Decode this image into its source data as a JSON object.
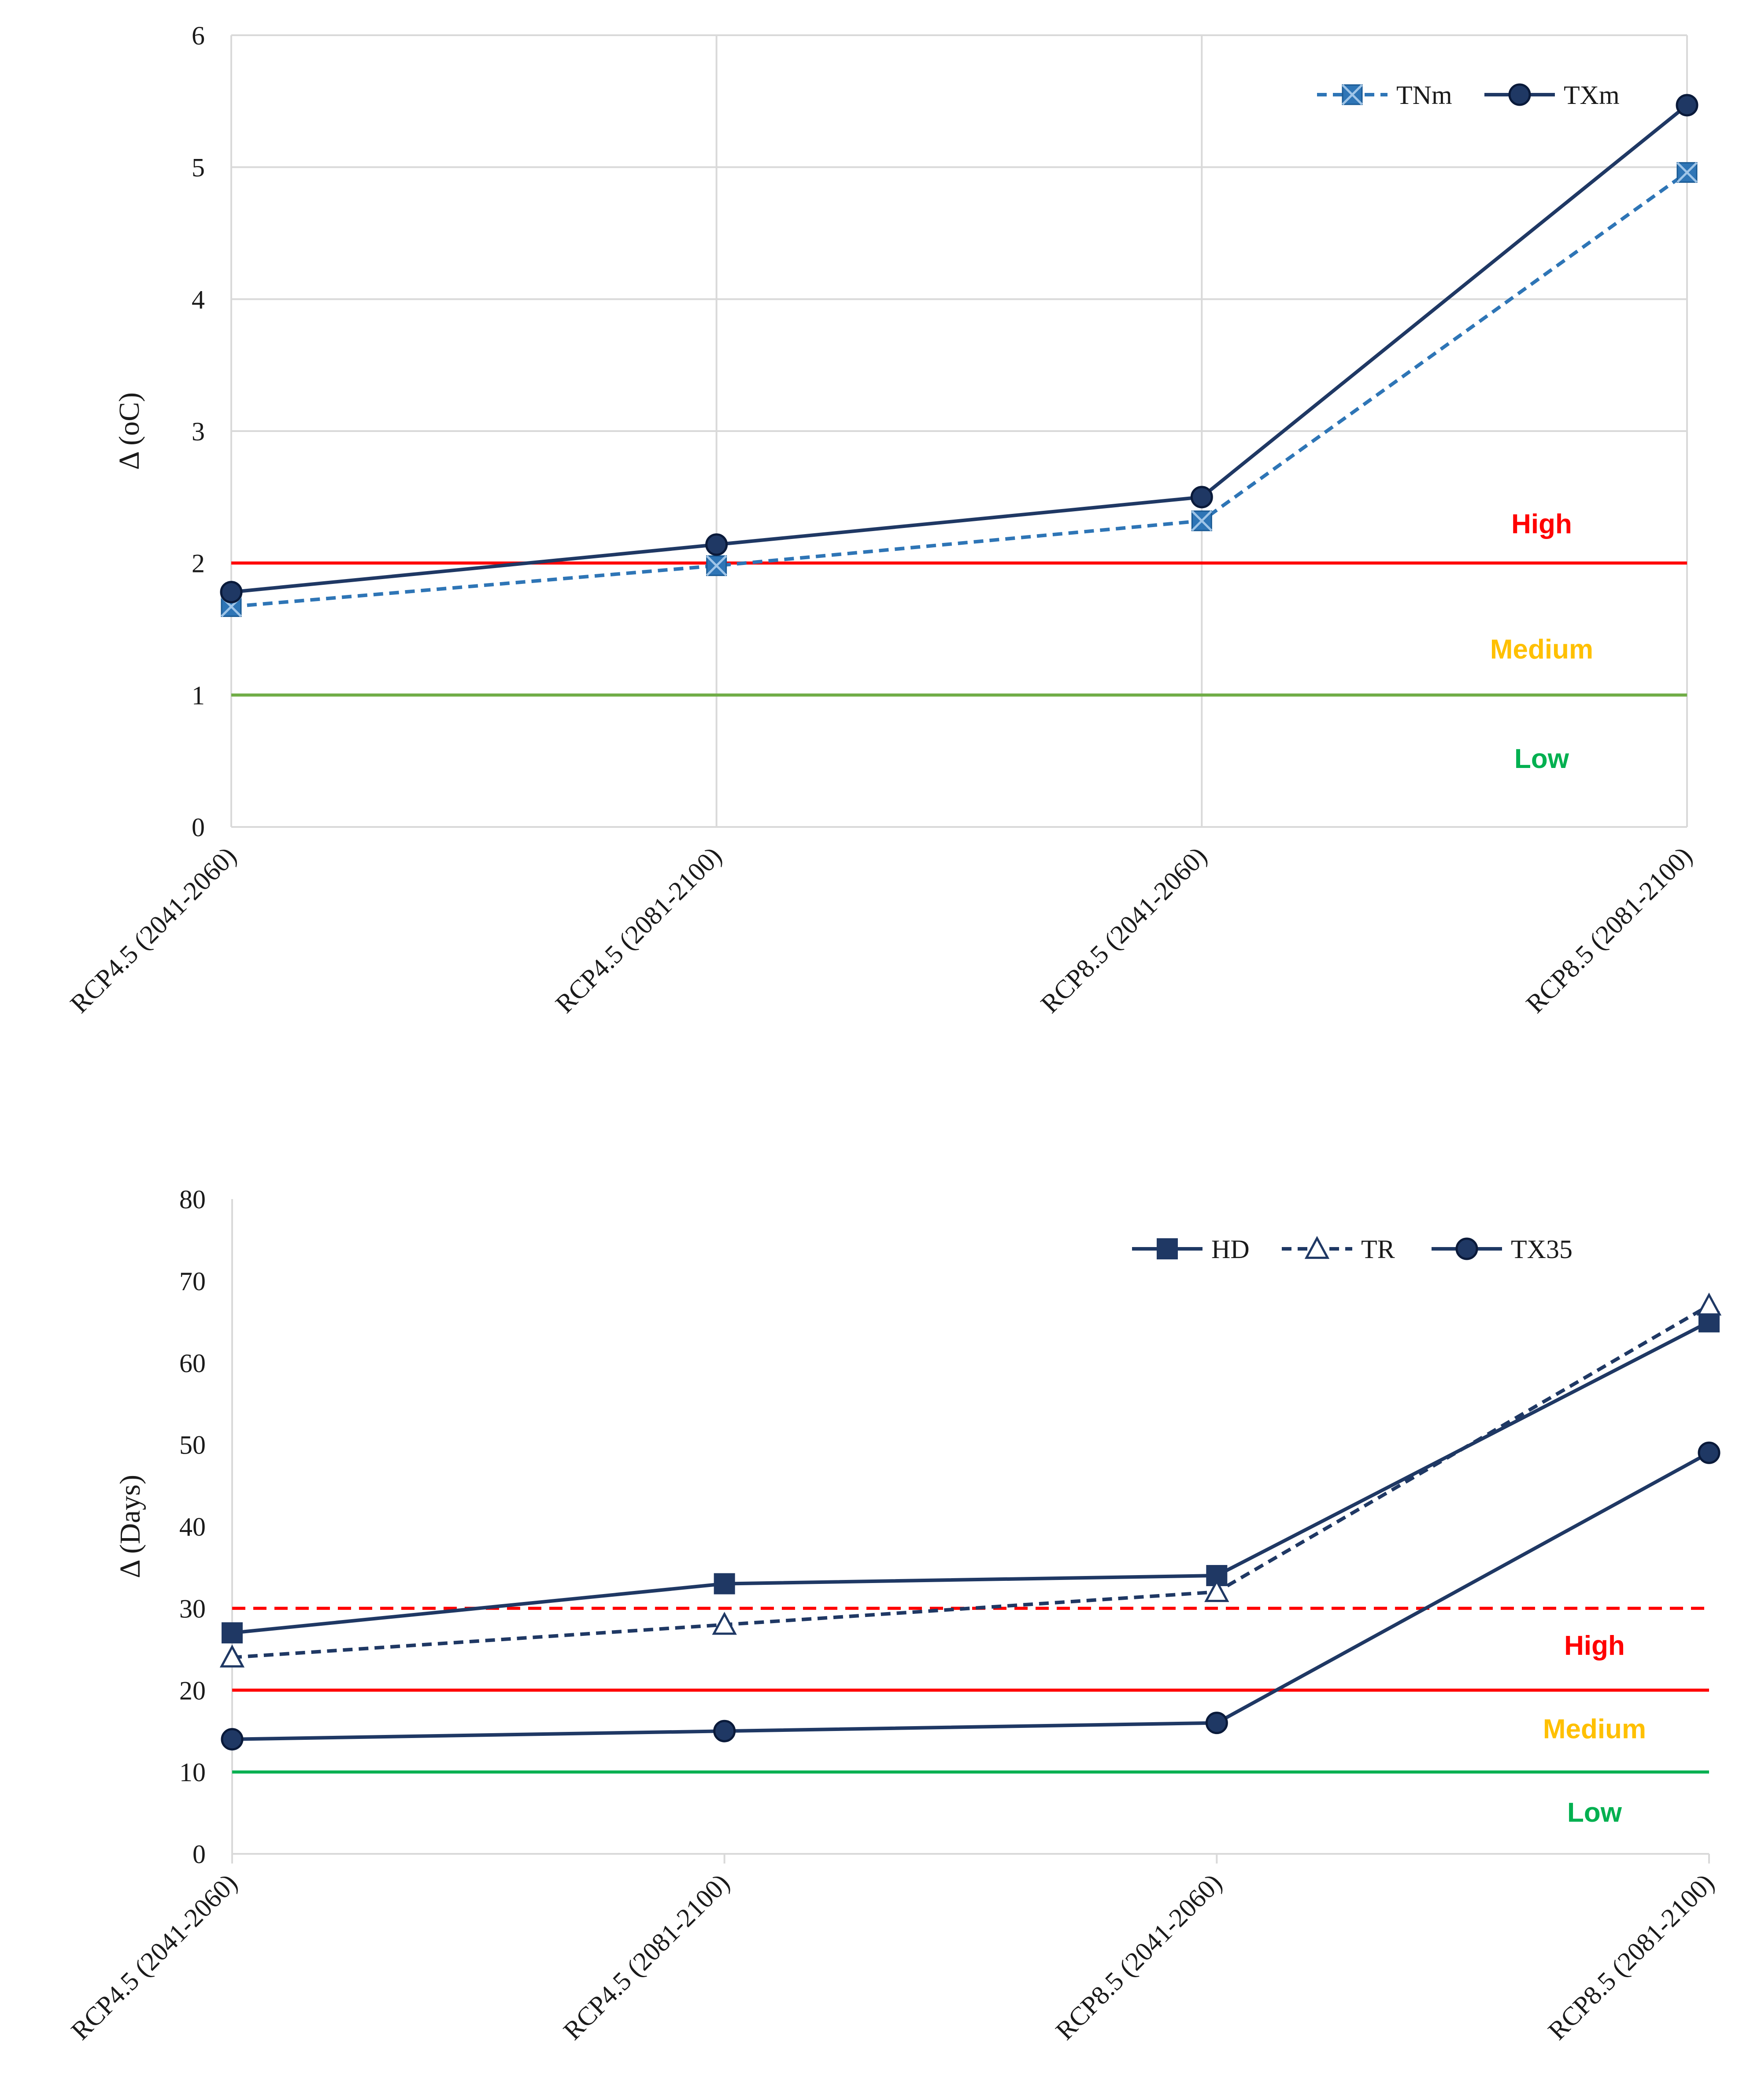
{
  "chart_data": [
    {
      "type": "line",
      "categories": [
        "RCP4.5 (2041-2060)",
        "RCP4.5 (2081-2100)",
        "RCP8.5 (2041-2060)",
        "RCP8.5 (2081-2100)"
      ],
      "ylabel": "Δ (oC)",
      "xlabel": "",
      "ylim": [
        0,
        6
      ],
      "yticks": [
        "0",
        "1",
        "2",
        "3",
        "4",
        "5",
        "6"
      ],
      "grid": true,
      "legend": "top-right",
      "series": [
        {
          "name": "TNm",
          "values": [
            1.67,
            1.98,
            2.32,
            4.96
          ],
          "color": "#2E75B6",
          "dash": true,
          "marker": "square-x"
        },
        {
          "name": "TXm",
          "values": [
            1.78,
            2.14,
            2.5,
            5.47
          ],
          "color": "#1F3864",
          "dash": false,
          "marker": "circle"
        }
      ],
      "thresholds": [
        {
          "value": 2,
          "color": "#FF0000",
          "dash": false
        },
        {
          "value": 1,
          "color": "#70AD47",
          "dash": false
        }
      ],
      "zones": [
        {
          "label": "High",
          "color": "#FF0000"
        },
        {
          "label": "Medium",
          "color": "#FFC000"
        },
        {
          "label": "Low",
          "color": "#00B050"
        }
      ]
    },
    {
      "type": "line",
      "categories": [
        "RCP4.5 (2041-2060)",
        "RCP4.5 (2081-2100)",
        "RCP8.5 (2041-2060)",
        "RCP8.5 (2081-2100)"
      ],
      "ylabel": "Δ (Days)",
      "xlabel": "",
      "ylim": [
        0,
        80
      ],
      "yticks": [
        "0",
        "10",
        "20",
        "30",
        "40",
        "50",
        "60",
        "70",
        "80"
      ],
      "grid": false,
      "legend": "top-right",
      "series": [
        {
          "name": "HD",
          "values": [
            27,
            33,
            34,
            65
          ],
          "color": "#1F3864",
          "dash": false,
          "marker": "square"
        },
        {
          "name": "TR",
          "values": [
            24,
            28,
            32,
            67
          ],
          "color": "#1F3864",
          "dash": true,
          "marker": "triangle"
        },
        {
          "name": "TX35",
          "values": [
            14,
            15,
            16,
            49
          ],
          "color": "#1F3864",
          "dash": false,
          "marker": "circle"
        }
      ],
      "thresholds": [
        {
          "value": 30,
          "color": "#FF0000",
          "dash": true
        },
        {
          "value": 20,
          "color": "#FF0000",
          "dash": false
        },
        {
          "value": 10,
          "color": "#00B050",
          "dash": false
        }
      ],
      "zones": [
        {
          "label": "High",
          "color": "#FF0000"
        },
        {
          "label": "Medium",
          "color": "#FFC000"
        },
        {
          "label": "Low",
          "color": "#00B050"
        }
      ]
    }
  ]
}
